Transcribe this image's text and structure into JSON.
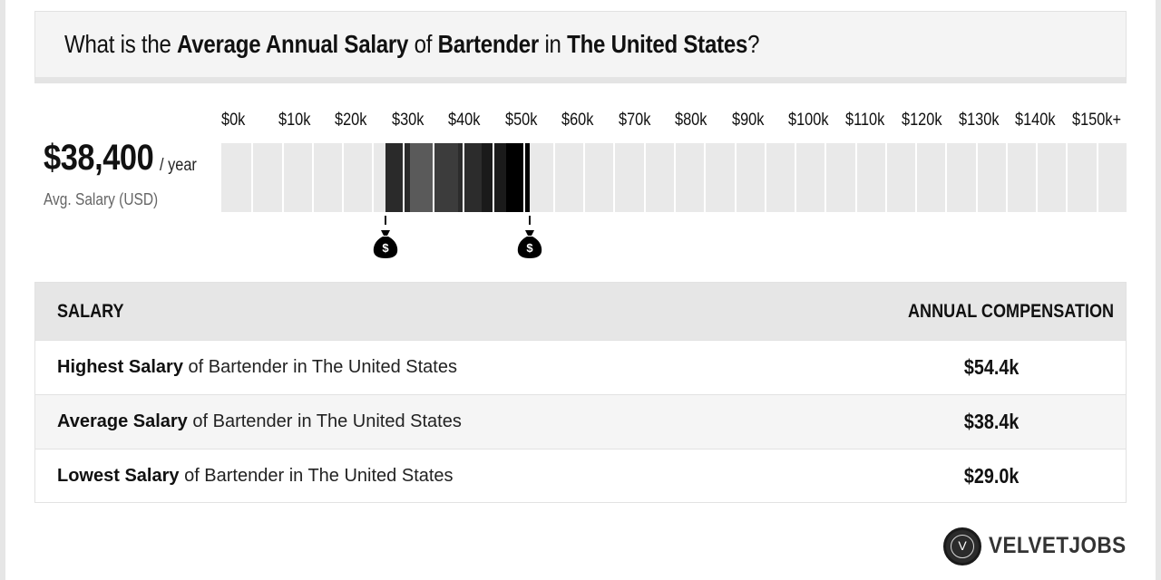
{
  "title": {
    "part1": "What is the ",
    "bold1": "Average Annual Salary",
    "part2": " of ",
    "bold2": "Bartender",
    "part3": " in ",
    "bold3": "The United States",
    "part4": "?"
  },
  "summary": {
    "amount": "$38,400",
    "unit": "/ year",
    "caption": "Avg. Salary (USD)"
  },
  "scale": {
    "ticks": [
      "$0k",
      "$10k",
      "$20k",
      "$30k",
      "$40k",
      "$50k",
      "$60k",
      "$70k",
      "$80k",
      "$90k",
      "$100k",
      "$110k",
      "$120k",
      "$130k",
      "$140k",
      "$150k+"
    ],
    "max_k": 150,
    "low_k": 29.0,
    "high_k": 54.4,
    "fill_colors": [
      "#2a2a2a",
      "#5a5a5a",
      "#3c3c3c",
      "#2c2c2c",
      "#1a1a1a",
      "#000000"
    ],
    "marker_icon": "money-bag-icon",
    "marker_symbol": "$"
  },
  "table": {
    "headers": {
      "salary": "SALARY",
      "compensation": "ANNUAL COMPENSATION"
    },
    "rows": [
      {
        "bold": "Highest Salary",
        "rest": " of Bartender in The United States",
        "value": "$54.4k"
      },
      {
        "bold": "Average Salary",
        "rest": " of Bartender in The United States",
        "value": "$38.4k"
      },
      {
        "bold": "Lowest Salary",
        "rest": " of Bartender in The United States",
        "value": "$29.0k"
      }
    ]
  },
  "logo": {
    "mark": "V",
    "text": "VELVETJOBS"
  }
}
